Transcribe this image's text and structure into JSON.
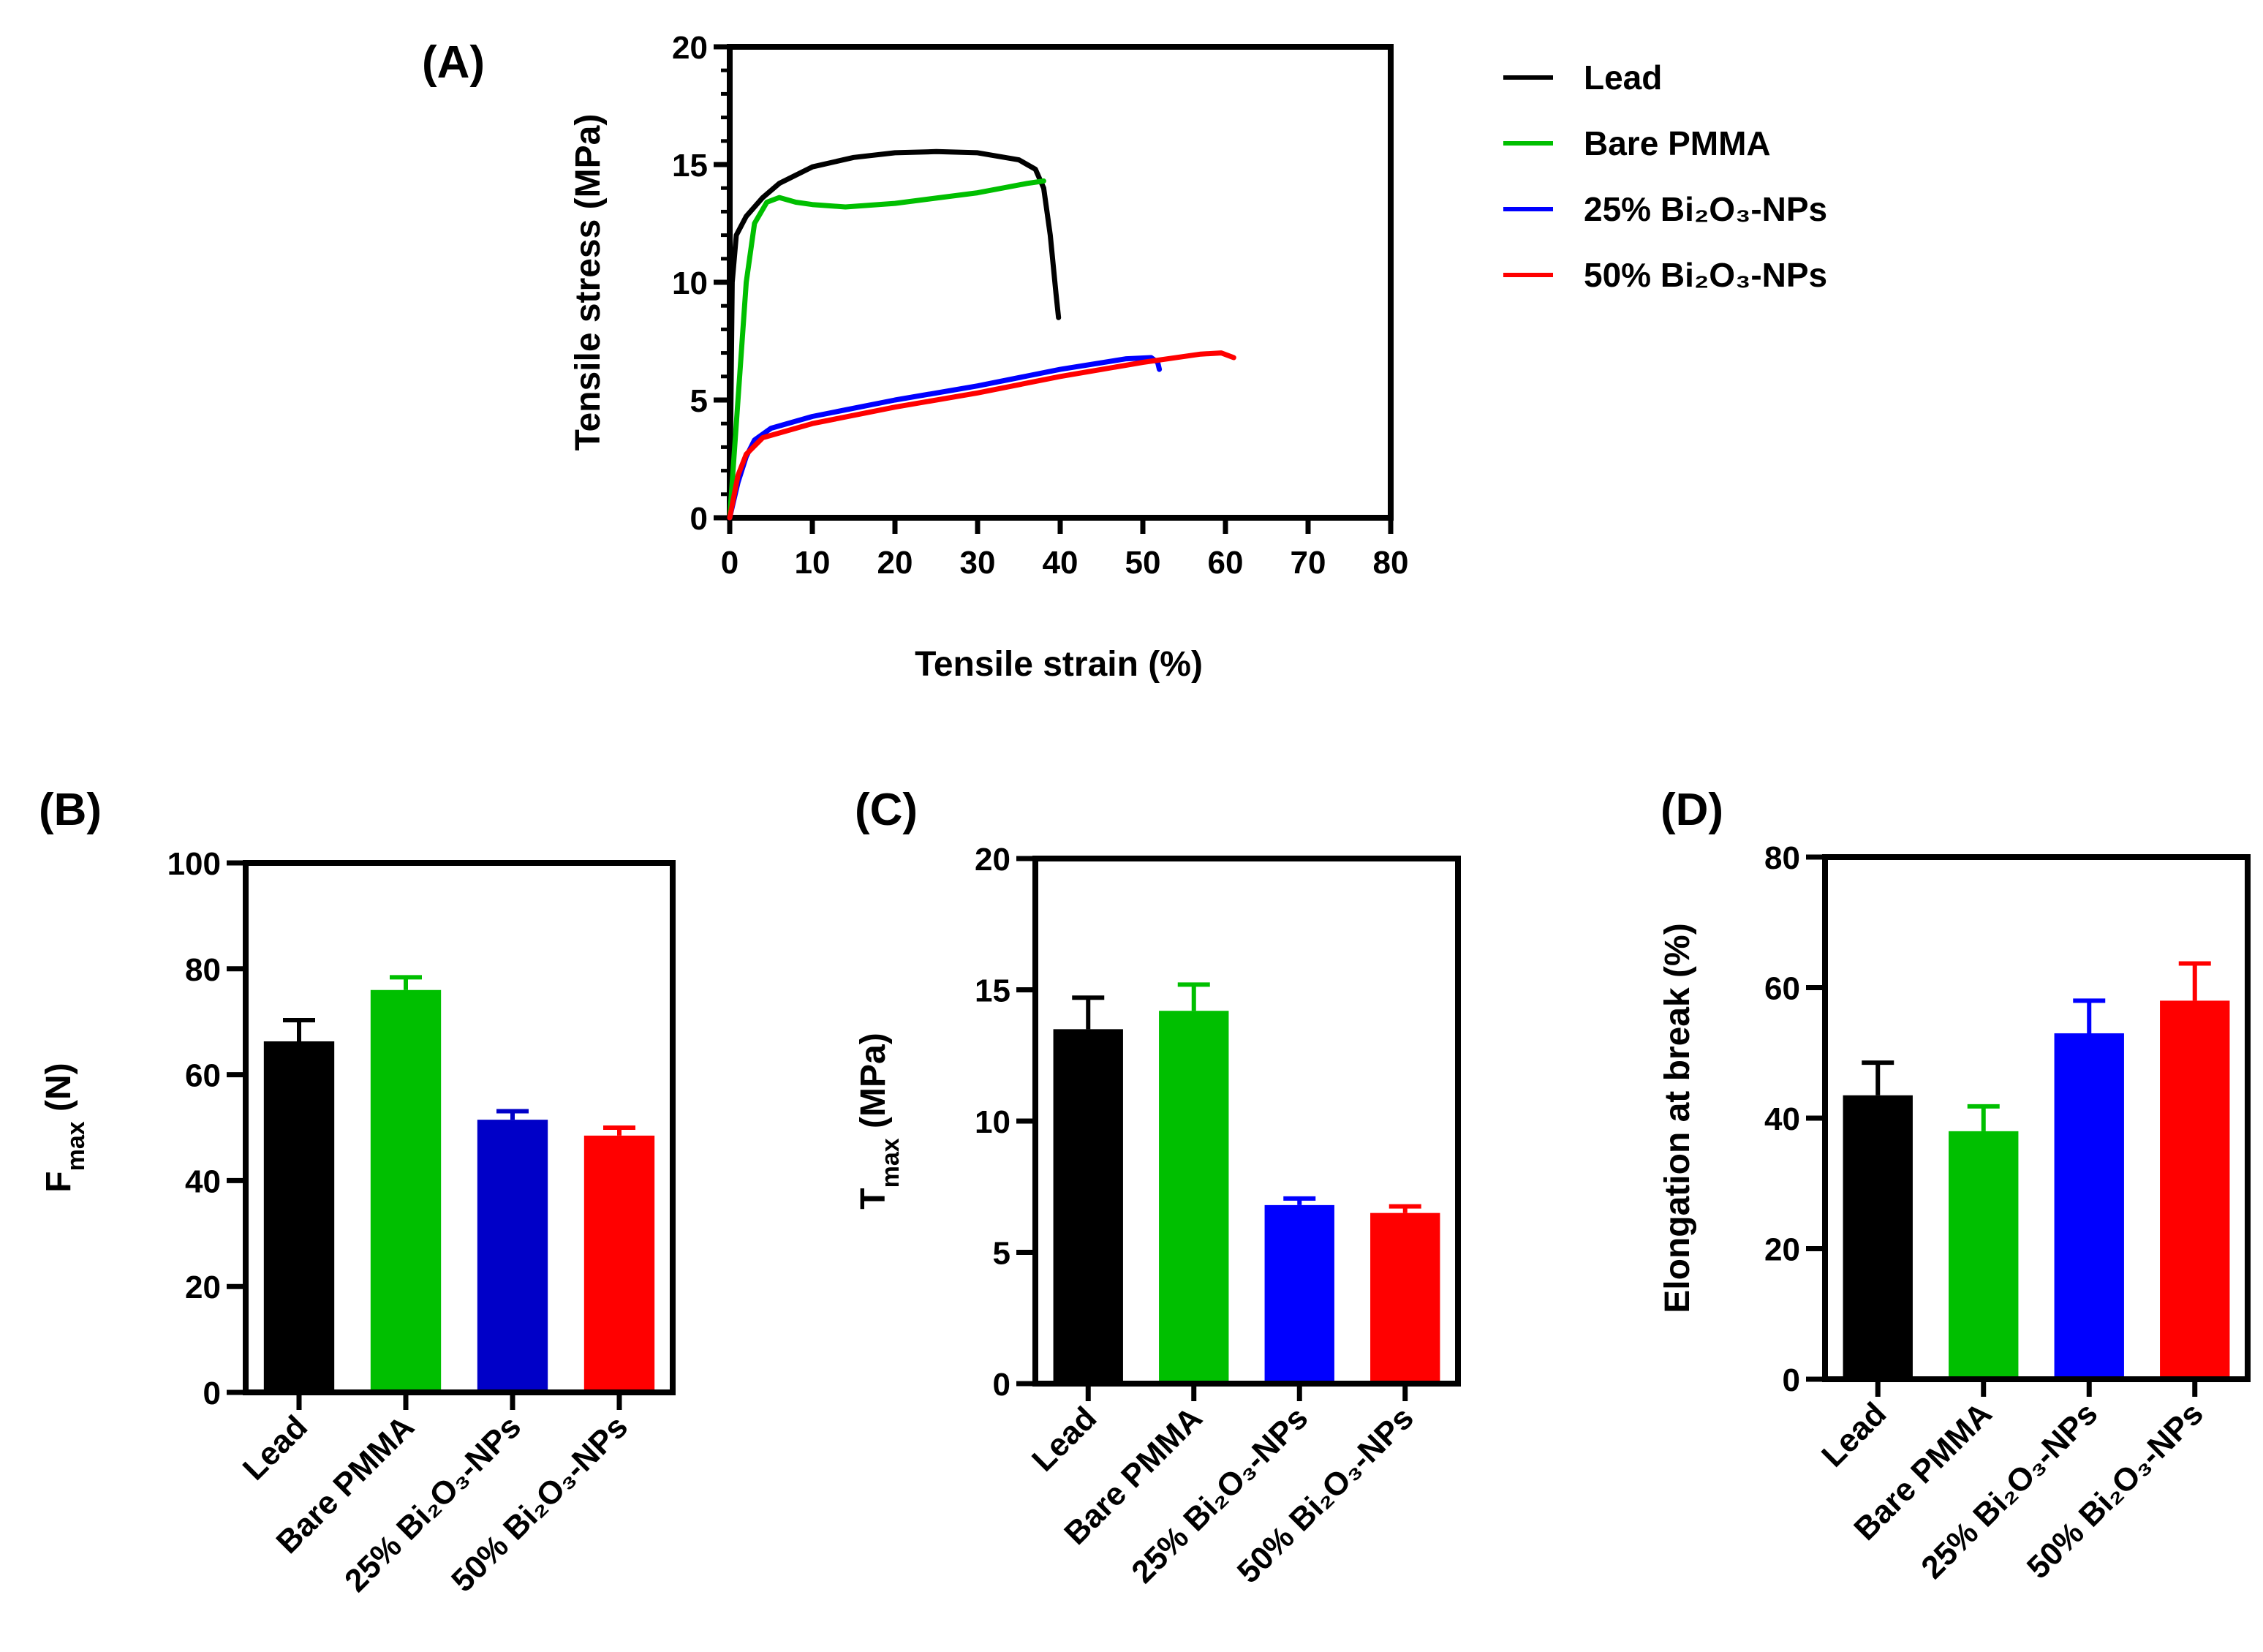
{
  "chart_data": [
    {
      "panel": "(A)",
      "type": "line",
      "xlabel": "Tensile strain (%)",
      "ylabel": "Tensile stress (MPa)",
      "xlim": [
        0,
        80
      ],
      "ylim": [
        0,
        20
      ],
      "xticks": [
        "0",
        "10",
        "20",
        "30",
        "40",
        "50",
        "60",
        "70",
        "80"
      ],
      "yticks": [
        "0",
        "5",
        "10",
        "15",
        "20"
      ],
      "legend_position": "right",
      "series": [
        {
          "name": "Lead",
          "color": "#000000",
          "points": [
            [
              0,
              0
            ],
            [
              0.3,
              10
            ],
            [
              0.8,
              12
            ],
            [
              2,
              12.8
            ],
            [
              4,
              13.6
            ],
            [
              6,
              14.2
            ],
            [
              10,
              14.9
            ],
            [
              15,
              15.3
            ],
            [
              20,
              15.5
            ],
            [
              25,
              15.55
            ],
            [
              30,
              15.5
            ],
            [
              35,
              15.2
            ],
            [
              37,
              14.8
            ],
            [
              38,
              14
            ],
            [
              38.8,
              12
            ],
            [
              39.5,
              9.5
            ],
            [
              39.8,
              8.5
            ]
          ]
        },
        {
          "name": "Bare PMMA",
          "color": "#00bf00",
          "points": [
            [
              0,
              0
            ],
            [
              1,
              5
            ],
            [
              2,
              10
            ],
            [
              3,
              12.5
            ],
            [
              4.5,
              13.4
            ],
            [
              6,
              13.6
            ],
            [
              8,
              13.4
            ],
            [
              10,
              13.3
            ],
            [
              14,
              13.2
            ],
            [
              20,
              13.35
            ],
            [
              30,
              13.8
            ],
            [
              36,
              14.2
            ],
            [
              38,
              14.3
            ]
          ]
        },
        {
          "name": "25% Bi₂O₃-NPs",
          "color": "#0000ff",
          "points": [
            [
              0,
              0
            ],
            [
              1,
              1.5
            ],
            [
              2,
              2.6
            ],
            [
              3,
              3.3
            ],
            [
              5,
              3.8
            ],
            [
              10,
              4.3
            ],
            [
              20,
              5
            ],
            [
              30,
              5.6
            ],
            [
              40,
              6.3
            ],
            [
              48,
              6.75
            ],
            [
              51,
              6.8
            ],
            [
              51.8,
              6.6
            ],
            [
              52,
              6.3
            ]
          ]
        },
        {
          "name": "50% Bi₂O₃-NPs",
          "color": "#ff0000",
          "points": [
            [
              0,
              0
            ],
            [
              1,
              1.8
            ],
            [
              2,
              2.7
            ],
            [
              4,
              3.4
            ],
            [
              10,
              4
            ],
            [
              20,
              4.7
            ],
            [
              30,
              5.3
            ],
            [
              40,
              6
            ],
            [
              50,
              6.6
            ],
            [
              57,
              6.95
            ],
            [
              59.5,
              7
            ],
            [
              61,
              6.8
            ]
          ]
        }
      ]
    },
    {
      "panel": "(B)",
      "type": "bar",
      "ylabel": {
        "main": "F",
        "sub": "max",
        "rest": " (N)"
      },
      "ylim": [
        0,
        100
      ],
      "yticks": [
        "0",
        "20",
        "40",
        "60",
        "80",
        "100"
      ],
      "categories": [
        "Lead",
        "Bare PMMA",
        "25% Bi₂O₃-NPs",
        "50% Bi₂O₃-NPs"
      ],
      "values": [
        66.3,
        76.0,
        51.5,
        48.5
      ],
      "errors": [
        4.0,
        2.4,
        1.6,
        1.5
      ],
      "colors": [
        "#000000",
        "#00bf00",
        "#0000c8",
        "#ff0000"
      ]
    },
    {
      "panel": "(C)",
      "type": "bar",
      "ylabel": {
        "main": "T",
        "sub": "max",
        "rest": " (MPa)"
      },
      "ylim": [
        0,
        20
      ],
      "yticks": [
        "0",
        "5",
        "10",
        "15",
        "20"
      ],
      "categories": [
        "Lead",
        "Bare PMMA",
        "25% Bi₂O₃-NPs",
        "50% Bi₂O₃-NPs"
      ],
      "values": [
        13.5,
        14.2,
        6.8,
        6.5
      ],
      "errors": [
        1.2,
        1.0,
        0.25,
        0.25
      ],
      "colors": [
        "#000000",
        "#00bf00",
        "#0000ff",
        "#ff0000"
      ]
    },
    {
      "panel": "(D)",
      "type": "bar",
      "ylabel": {
        "main": "Elongation at break (%)",
        "sub": "",
        "rest": ""
      },
      "ylim": [
        0,
        80
      ],
      "yticks": [
        "0",
        "20",
        "40",
        "60",
        "80"
      ],
      "categories": [
        "Lead",
        "Bare PMMA",
        "25% Bi₂O₃-NPs",
        "50% Bi₂O₃-NPs"
      ],
      "values": [
        43.5,
        38.0,
        53.0,
        58.0
      ],
      "errors": [
        5.0,
        3.8,
        5.0,
        5.7
      ],
      "colors": [
        "#000000",
        "#00bf00",
        "#0000ff",
        "#ff0000"
      ]
    }
  ]
}
